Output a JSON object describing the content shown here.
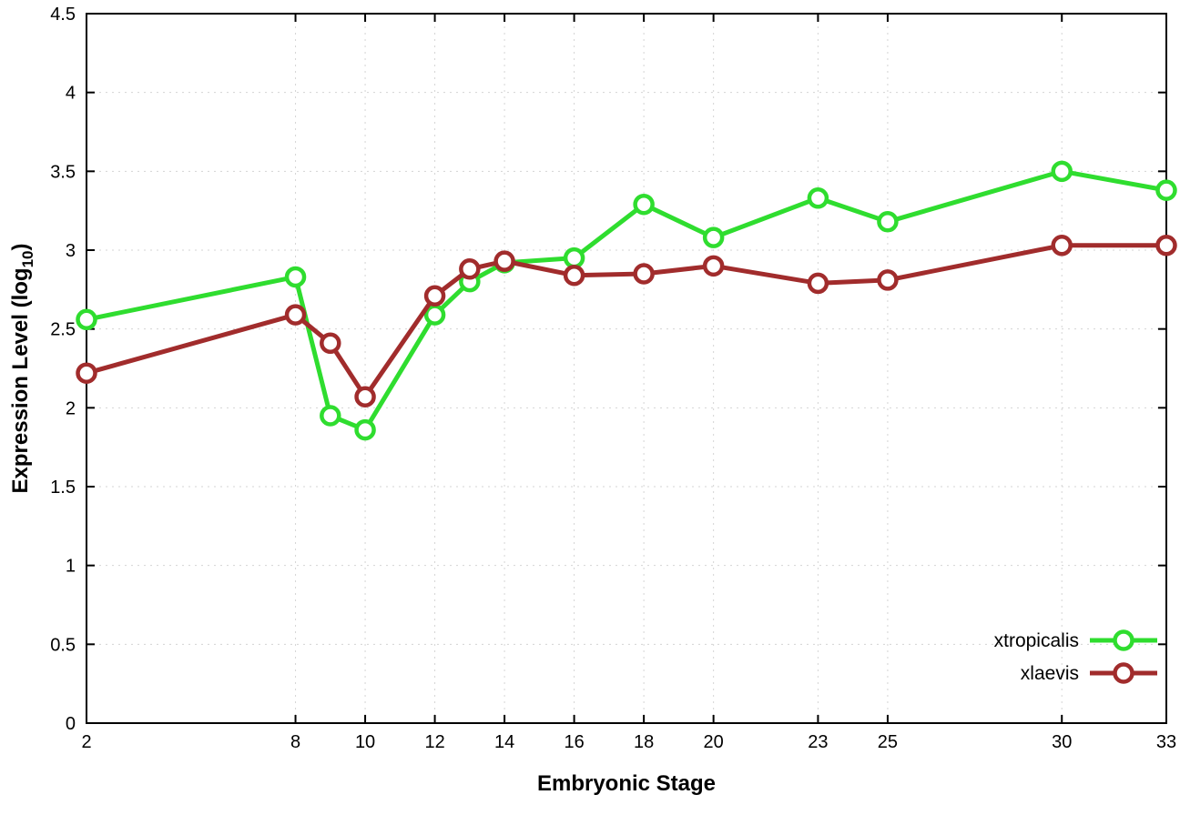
{
  "chart_data": {
    "type": "line",
    "x": [
      2,
      8,
      9,
      10,
      12,
      13,
      14,
      16,
      18,
      20,
      23,
      25,
      30,
      33
    ],
    "series": [
      {
        "name": "xtropicalis",
        "color": "#2fdd2f",
        "values": [
          2.56,
          2.83,
          1.95,
          1.86,
          2.59,
          2.8,
          2.92,
          2.95,
          3.29,
          3.08,
          3.33,
          3.18,
          3.5,
          3.38
        ]
      },
      {
        "name": "xlaevis",
        "color": "#a12c2c",
        "values": [
          2.22,
          2.59,
          2.41,
          2.07,
          2.71,
          2.88,
          2.93,
          2.84,
          2.85,
          2.9,
          2.79,
          2.81,
          3.03,
          3.03
        ]
      }
    ],
    "title": "",
    "xlabel": "Embryonic Stage",
    "ylabel": "Expression Level (log10)",
    "ylabel_parts": {
      "prefix": "Expression Level (log",
      "sub": "10",
      "suffix": ")"
    },
    "xlim": [
      2,
      33
    ],
    "ylim": [
      0,
      4.5
    ],
    "xticks": [
      2,
      8,
      10,
      12,
      14,
      16,
      18,
      20,
      23,
      25,
      30,
      33
    ],
    "xtick_labels": [
      "2",
      "8",
      "10",
      "12",
      "14",
      "16",
      "18",
      "20",
      "23",
      "25",
      "30",
      "33"
    ],
    "yticks": [
      0,
      0.5,
      1,
      1.5,
      2,
      2.5,
      3,
      3.5,
      4,
      4.5
    ],
    "ytick_labels": [
      "0",
      "0.5",
      "1",
      "1.5",
      "2",
      "2.5",
      "3",
      "3.5",
      "4",
      "4.5"
    ],
    "grid": true,
    "grid_color": "#d4d4d4",
    "axis_color": "#000000",
    "legend_position": "bottom-right",
    "legend_entries": [
      "xtropicalis",
      "xlaevis"
    ]
  }
}
